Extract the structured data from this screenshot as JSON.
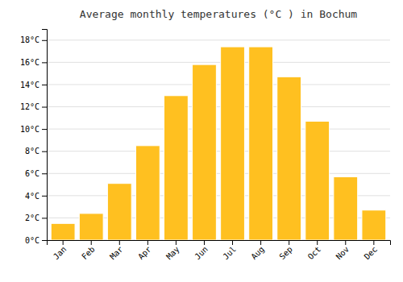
{
  "chart_data": {
    "type": "bar",
    "title": "Average monthly temperatures (°C ) in Bochum",
    "categories": [
      "Jan",
      "Feb",
      "Mar",
      "Apr",
      "May",
      "Jun",
      "Jul",
      "Aug",
      "Sep",
      "Oct",
      "Nov",
      "Dec"
    ],
    "values": [
      1.5,
      2.4,
      5.1,
      8.5,
      13.0,
      15.8,
      17.4,
      17.4,
      14.7,
      10.7,
      5.7,
      2.7
    ],
    "color": "#FFC020",
    "ylim": [
      0,
      19.0
    ],
    "yticks": [
      {
        "value": 0,
        "label": "0°C"
      },
      {
        "value": 2,
        "label": "2°C"
      },
      {
        "value": 4,
        "label": "4°C"
      },
      {
        "value": 6,
        "label": "6°C"
      },
      {
        "value": 8,
        "label": "8°C"
      },
      {
        "value": 10,
        "label": "10°C"
      },
      {
        "value": 12,
        "label": "12°C"
      },
      {
        "value": 14,
        "label": "14°C"
      },
      {
        "value": 16,
        "label": "16°C"
      },
      {
        "value": 18,
        "label": "18°C"
      }
    ],
    "grid": true
  }
}
